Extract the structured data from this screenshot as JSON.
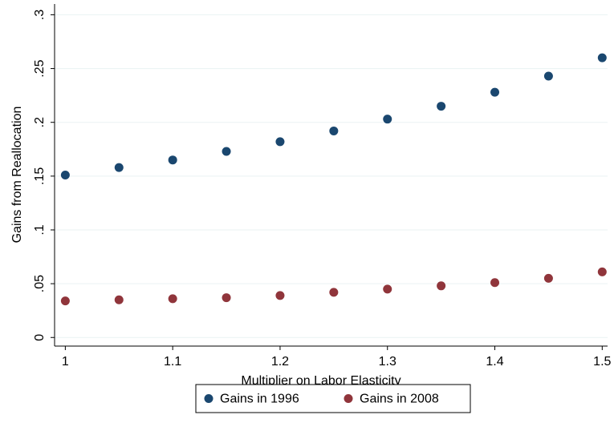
{
  "chart_data": {
    "type": "scatter",
    "x_label": "Multiplier on Labor Elasticity",
    "y_label": "Gains from Reallocation",
    "x": [
      1,
      1.05,
      1.1,
      1.15,
      1.2,
      1.25,
      1.3,
      1.35,
      1.4,
      1.45,
      1.5
    ],
    "series": [
      {
        "name": "Gains in 1996",
        "color": "#1a476f",
        "values": [
          0.151,
          0.158,
          0.165,
          0.173,
          0.182,
          0.192,
          0.203,
          0.215,
          0.228,
          0.243,
          0.26
        ]
      },
      {
        "name": "Gains in 2008",
        "color": "#90353b",
        "values": [
          0.034,
          0.035,
          0.036,
          0.037,
          0.039,
          0.042,
          0.045,
          0.048,
          0.051,
          0.055,
          0.061
        ]
      }
    ],
    "xlim": [
      0.99,
      1.505
    ],
    "ylim": [
      -0.008,
      0.31
    ],
    "xticks": [
      1,
      1.1,
      1.2,
      1.3,
      1.4,
      1.5
    ],
    "yticks": [
      0,
      {
        "value": 0.05,
        "label": ".05"
      },
      {
        "value": 0.1,
        "label": ".1"
      },
      {
        "value": 0.15,
        "label": ".15"
      },
      {
        "value": 0.2,
        "label": ".2"
      },
      {
        "value": 0.25,
        "label": ".25"
      },
      {
        "value": 0.3,
        "label": ".3"
      }
    ],
    "grid": true,
    "legend": "bottom"
  }
}
